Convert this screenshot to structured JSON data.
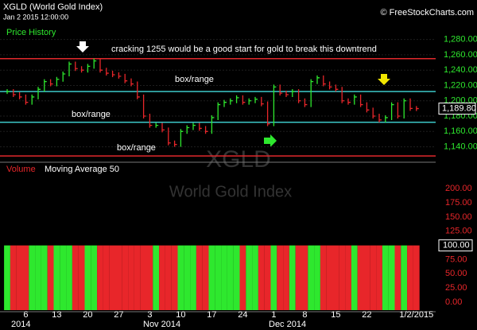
{
  "header": {
    "symbol": "XGLD (World Gold Index)",
    "datetime": "Jan 2 2015 12:00:00",
    "credit": "© FreeStockCharts.com"
  },
  "chart_data": {
    "type": "price-bars",
    "title": "Price History",
    "watermark": [
      "XGLD",
      "World Gold Index"
    ],
    "annotations": [
      "cracking 1255 would be a good start for gold to break this downtrend",
      "box/range",
      "box/range",
      "box/range"
    ],
    "categories": [
      null,
      null,
      null,
      "6",
      null,
      null,
      null,
      null,
      "13",
      null,
      null,
      null,
      null,
      "20",
      null,
      null,
      null,
      null,
      "27",
      null,
      null,
      null,
      null,
      "3",
      null,
      null,
      null,
      null,
      "10",
      null,
      null,
      null,
      null,
      "17",
      null,
      null,
      null,
      null,
      "24",
      null,
      null,
      null,
      null,
      "1",
      null,
      null,
      null,
      null,
      "8",
      null,
      null,
      null,
      null,
      "15",
      null,
      null,
      null,
      null,
      "22",
      null,
      null,
      null,
      null,
      null,
      null,
      null,
      "1/2/2015"
    ],
    "months": [
      "Nov 2014",
      "Dec 2014",
      "2014"
    ],
    "values": [
      1212,
      1208,
      1205,
      1198,
      1205,
      1215,
      1225,
      1222,
      1228,
      1235,
      1248,
      1242,
      1240,
      1245,
      1252,
      1240,
      1236,
      1234,
      1232,
      1226,
      1222,
      1205,
      1180,
      1168,
      1168,
      1162,
      1145,
      1143,
      1160,
      1165,
      1168,
      1164,
      1160,
      1178,
      1195,
      1198,
      1200,
      1204,
      1198,
      1200,
      1202,
      1196,
      1170,
      1218,
      1210,
      1208,
      1212,
      1200,
      1195,
      1225,
      1230,
      1222,
      1218,
      1215,
      1200,
      1198,
      1205,
      1195,
      1188,
      1180,
      1175,
      1178,
      1195,
      1180,
      1200,
      1190,
      1189.8
    ],
    "up_color": "#2ee82e",
    "down_color": "#e8262a",
    "ylim": [
      1124,
      1290
    ],
    "yticks": [
      {
        "value": 1140,
        "label": "1,140.00"
      },
      {
        "value": 1160,
        "label": "1,160.00"
      },
      {
        "value": 1180,
        "label": "1,180.00"
      },
      {
        "value": 1200,
        "label": "1,200.00"
      },
      {
        "value": 1220,
        "label": "1,220.00"
      },
      {
        "value": 1240,
        "label": "1,240.00"
      },
      {
        "value": 1260,
        "label": "1,260.00"
      },
      {
        "value": 1280,
        "label": "1,280.00"
      }
    ],
    "last": {
      "value": 1189.8,
      "label": "1,189.80"
    },
    "levels": [
      {
        "value": 1255,
        "color": "#e0282c"
      },
      {
        "value": 1212,
        "color": "#3cc8c8"
      },
      {
        "value": 1172,
        "color": "#3cc8c8"
      },
      {
        "value": 1128,
        "color": "#e0282c"
      }
    ],
    "volume": {
      "title": "Volume",
      "ma_title": "Moving Average 50",
      "values": [
        100,
        100,
        100,
        100,
        100,
        100,
        100,
        100,
        100,
        100,
        100,
        100,
        100,
        100,
        100,
        100,
        100,
        100,
        100,
        100,
        100,
        100,
        100,
        100,
        100,
        100,
        100,
        100,
        100,
        100,
        100,
        100,
        100,
        100,
        100,
        100,
        100,
        100,
        100,
        100,
        100,
        100,
        100,
        100,
        100,
        100,
        100,
        100,
        100,
        100,
        100,
        100,
        100,
        100,
        100,
        100,
        100,
        100,
        100,
        100,
        100,
        100,
        100,
        100,
        100,
        100,
        100
      ],
      "ylim": [
        -14,
        227
      ],
      "yticks": [
        {
          "value": 0,
          "label": "0.00"
        },
        {
          "value": 25,
          "label": "25.00"
        },
        {
          "value": 50,
          "label": "50.00"
        },
        {
          "value": 75,
          "label": "75.00"
        },
        {
          "value": 125,
          "label": "125.00"
        },
        {
          "value": 150,
          "label": "150.00"
        },
        {
          "value": 175,
          "label": "175.00"
        },
        {
          "value": 200,
          "label": "200.00"
        }
      ],
      "last": {
        "value": 100,
        "label": "100.00"
      }
    }
  }
}
